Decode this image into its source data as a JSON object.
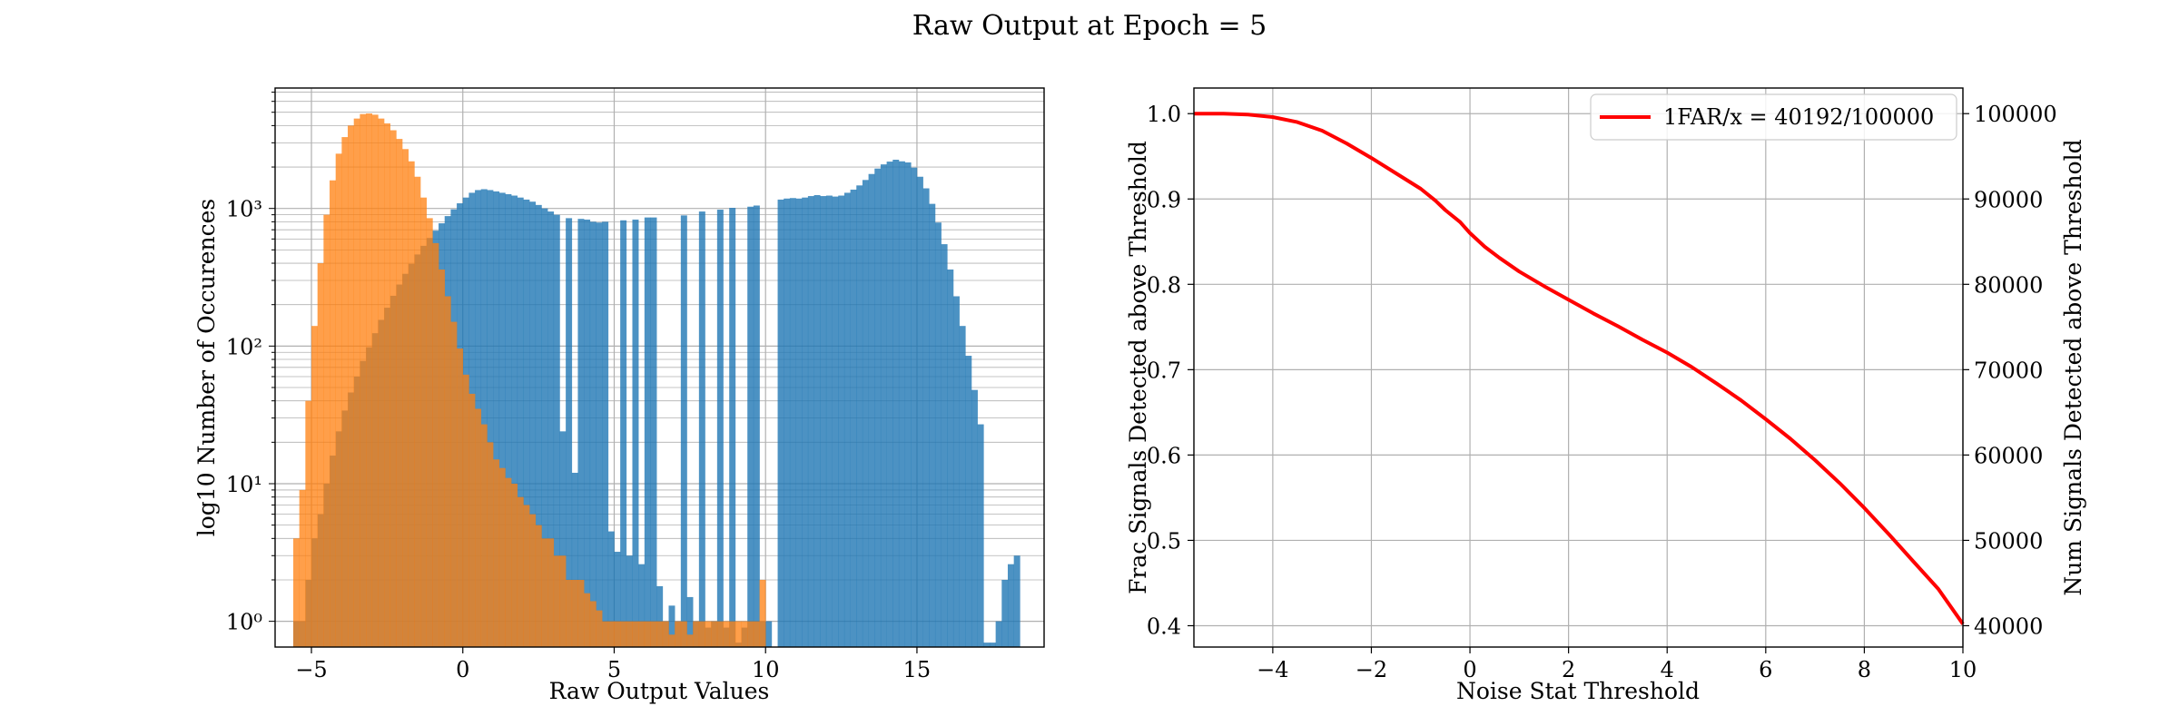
{
  "figure": {
    "suptitle": "Raw Output at Epoch = 5"
  },
  "chart_data": [
    {
      "type": "histogram",
      "scale_y": "log",
      "grid": true,
      "xlabel": "Raw Output Values",
      "ylabel": "log10 Number of Occurences",
      "xlim": [
        -6.2,
        19.2
      ],
      "ylim": [
        0.65,
        7500
      ],
      "xticks": [
        -5,
        0,
        5,
        10,
        15
      ],
      "xtick_labels": [
        "−5",
        "0",
        "5",
        "10",
        "15"
      ],
      "yticks": [
        1,
        10,
        100,
        1000
      ],
      "ytick_labels": [
        "10⁰",
        "10¹",
        "10²",
        "10³"
      ],
      "bin_width": 0.2,
      "series": [
        {
          "color": "#1f77b4",
          "alpha": 0.8,
          "bins_start": -5.6,
          "counts": [
            1,
            1,
            2,
            4,
            6,
            10,
            16,
            24,
            34,
            46,
            60,
            78,
            98,
            124,
            155,
            190,
            232,
            280,
            335,
            396,
            463,
            535,
            610,
            690,
            780,
            880,
            985,
            1090,
            1200,
            1300,
            1360,
            1380,
            1360,
            1330,
            1300,
            1270,
            1240,
            1200,
            1160,
            1120,
            1060,
            1000,
            950,
            900,
            870,
            850,
            850,
            840,
            830,
            800,
            790,
            800,
            810,
            830,
            820,
            810,
            830,
            850,
            860,
            860,
            880,
            870,
            900,
            910,
            890,
            920,
            930,
            950,
            970,
            960,
            980,
            990,
            1010,
            990,
            1000,
            1030,
            1050,
            1070,
            1100,
            1120,
            1160,
            1180,
            1190,
            1180,
            1200,
            1230,
            1250,
            1230,
            1240,
            1220,
            1240,
            1300,
            1370,
            1470,
            1610,
            1780,
            1950,
            2090,
            2190,
            2260,
            2200,
            2160,
            1980,
            1700,
            1400,
            1080,
            790,
            550,
            360,
            230,
            140,
            85,
            48,
            27,
            14,
            7,
            4,
            2,
            1,
            3
          ],
          "overrides": {
            "3.2": 24,
            "3.6": 12,
            "4.8": 4.5,
            "5.0": 3.2,
            "5.4": 3.0,
            "5.8": 2.6,
            "6.4": 1.8,
            "6.6": 1.0,
            "6.8": 1.3,
            "7.0": 1.0,
            "7.4": 1.5,
            "7.6": 1.0,
            "8.0": 0.9,
            "8.2": 1.0,
            "8.6": 0.9,
            "9.0": 0.7,
            "9.2": 0.9,
            "9.8": 1.0,
            "10.0": 1.0,
            "10.2": 0.6,
            "17.2": 0.7,
            "17.4": 0.7,
            "17.6": 1.0,
            "18.0": 2.6
          }
        },
        {
          "color": "#ff7f0e",
          "alpha": 0.75,
          "bins_start": -5.6,
          "counts": [
            4,
            9,
            40,
            140,
            400,
            900,
            1600,
            2500,
            3300,
            4000,
            4500,
            4850,
            4900,
            4800,
            4500,
            4150,
            3700,
            3200,
            2700,
            2200,
            1700,
            1200,
            850,
            560,
            360,
            230,
            150,
            96,
            62,
            45,
            35,
            27,
            20,
            15,
            13,
            11,
            10,
            8,
            7,
            6,
            5,
            4,
            4,
            3,
            3,
            2,
            2,
            2,
            1.6,
            1.4,
            1.2,
            1,
            1,
            1,
            1,
            1,
            1,
            1,
            1,
            1,
            1,
            1,
            0.8,
            1,
            1,
            0.8,
            1,
            1,
            1,
            1,
            1,
            1,
            1,
            1,
            1,
            1,
            1,
            2
          ]
        }
      ]
    },
    {
      "type": "line",
      "grid": true,
      "xlabel": "Noise Stat Threshold",
      "ylabel": "Frac Signals Detected above Threshold",
      "y2label": "Num Signals Detected above Threshold",
      "xlim": [
        -5.6,
        10
      ],
      "ylim": [
        0.375,
        1.03
      ],
      "xticks": [
        -4,
        -2,
        0,
        2,
        4,
        6,
        8,
        10
      ],
      "xtick_labels": [
        "−4",
        "−2",
        "0",
        "2",
        "4",
        "6",
        "8",
        "10"
      ],
      "yticks": [
        0.4,
        0.5,
        0.6,
        0.7,
        0.8,
        0.9,
        1.0
      ],
      "ytick_labels": [
        "0.4",
        "0.5",
        "0.6",
        "0.7",
        "0.8",
        "0.9",
        "1.0"
      ],
      "y2ticks": [
        40000,
        50000,
        60000,
        70000,
        80000,
        90000,
        100000
      ],
      "y2tick_labels": [
        "40000",
        "50000",
        "60000",
        "70000",
        "80000",
        "90000",
        "100000"
      ],
      "legend_position": "upper right",
      "series": [
        {
          "name": "1FAR/x = 40192/100000",
          "color": "#ff0000",
          "x": [
            -5.6,
            -5.0,
            -4.5,
            -4.0,
            -3.5,
            -3.0,
            -2.5,
            -2.0,
            -1.5,
            -1.0,
            -0.7,
            -0.5,
            -0.2,
            0.0,
            0.3,
            0.6,
            1.0,
            1.5,
            2.0,
            2.5,
            3.0,
            3.5,
            4.0,
            4.5,
            5.0,
            5.5,
            6.0,
            6.5,
            7.0,
            7.5,
            8.0,
            8.5,
            9.0,
            9.5,
            10.0
          ],
          "y": [
            1.0,
            1.0,
            0.999,
            0.996,
            0.99,
            0.98,
            0.965,
            0.948,
            0.93,
            0.912,
            0.898,
            0.887,
            0.873,
            0.86,
            0.844,
            0.831,
            0.815,
            0.798,
            0.782,
            0.766,
            0.751,
            0.735,
            0.72,
            0.703,
            0.684,
            0.664,
            0.642,
            0.619,
            0.594,
            0.567,
            0.538,
            0.507,
            0.475,
            0.443,
            0.402
          ]
        }
      ]
    }
  ]
}
